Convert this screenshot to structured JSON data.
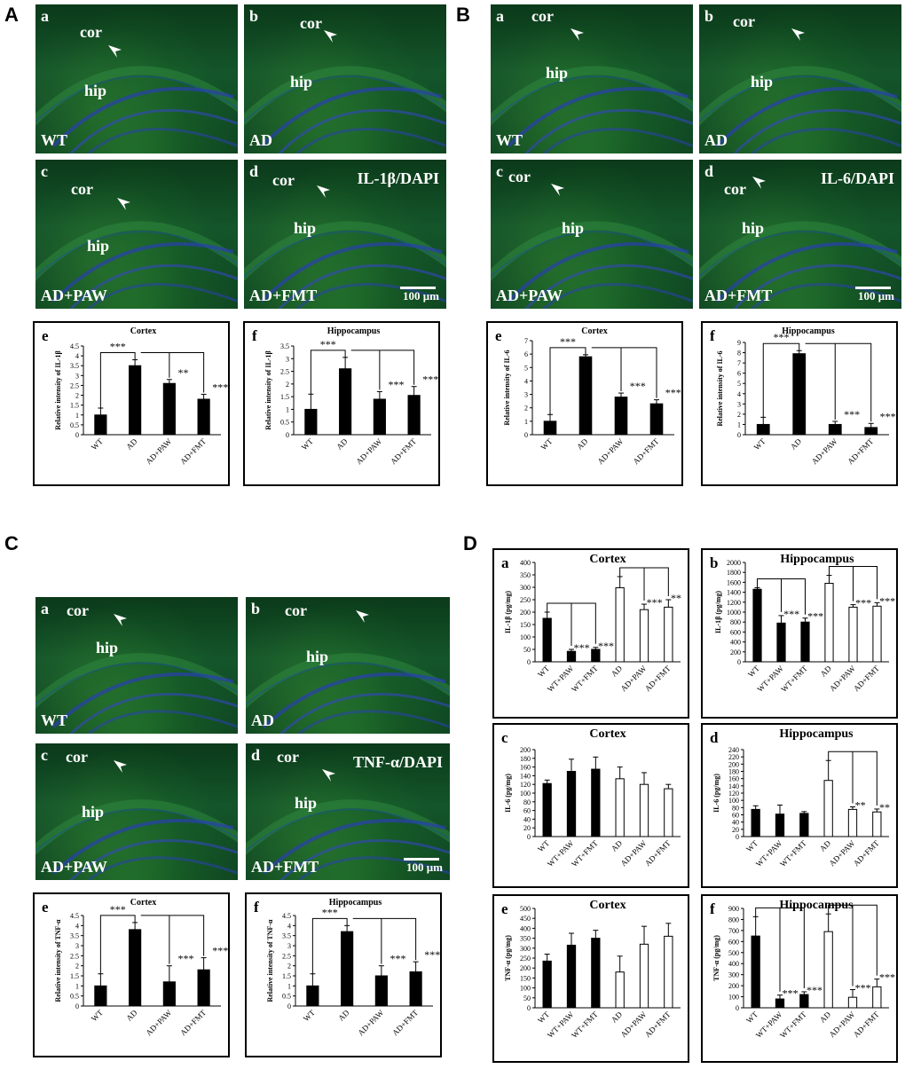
{
  "panels": {
    "A": {
      "letter": "A",
      "stain": "IL-1β/DAPI"
    },
    "B": {
      "letter": "B",
      "stain": "IL-6/DAPI"
    },
    "C": {
      "letter": "C",
      "stain": "TNF-α/DAPI"
    },
    "D": {
      "letter": "D"
    }
  },
  "micro_labels": {
    "cor": "cor",
    "hip": "hip",
    "scale": "100 μm"
  },
  "groups": {
    "wt": "WT",
    "ad": "AD",
    "ad_paw": "AD+PAW",
    "ad_fmt": "AD+FMT"
  },
  "sublabels": {
    "a": "a",
    "b": "b",
    "c": "c",
    "d": "d",
    "e": "e",
    "f": "f"
  },
  "colors": {
    "black_bar": "#000000",
    "white_bar": "#ffffff",
    "tissue_green": "#1f6b34",
    "dapi_blue": "#2a3fb0"
  },
  "chart_data": [
    {
      "id": "A-e",
      "panel": "A",
      "sub": "e",
      "type": "bar",
      "title": "Cortex",
      "ylabel": "Relative intensity of IL-1β",
      "categories": [
        "WT",
        "AD",
        "AD+PAW",
        "AD+FMT"
      ],
      "values": [
        1.0,
        3.5,
        2.6,
        1.8
      ],
      "errors": [
        0.35,
        0.3,
        0.2,
        0.25
      ],
      "sig": [
        "",
        "",
        "**",
        "***"
      ],
      "ylim": [
        0,
        4.5
      ],
      "ticks": [
        0,
        0.5,
        1,
        1.5,
        2,
        2.5,
        3,
        3.5,
        4,
        4.5
      ],
      "top_sig": "***"
    },
    {
      "id": "A-f",
      "panel": "A",
      "sub": "f",
      "type": "bar",
      "title": "Hippocampus",
      "ylabel": "Relative intensity of IL-1β",
      "categories": [
        "WT",
        "AD",
        "AD+PAW",
        "AD+FMT"
      ],
      "values": [
        1.0,
        2.6,
        1.4,
        1.55
      ],
      "errors": [
        0.6,
        0.45,
        0.3,
        0.35
      ],
      "sig": [
        "",
        "",
        "***",
        "***"
      ],
      "ylim": [
        0,
        3.5
      ],
      "ticks": [
        0,
        0.5,
        1,
        1.5,
        2,
        2.5,
        3,
        3.5
      ],
      "top_sig": "***"
    },
    {
      "id": "B-e",
      "panel": "B",
      "sub": "e",
      "type": "bar",
      "title": "Cortex",
      "ylabel": "Relative intensity of IL-6",
      "categories": [
        "WT",
        "AD",
        "AD+PAW",
        "AD+FMT"
      ],
      "values": [
        1.0,
        5.8,
        2.8,
        2.3
      ],
      "errors": [
        0.5,
        0.15,
        0.3,
        0.3
      ],
      "sig": [
        "",
        "",
        "***",
        "***"
      ],
      "ylim": [
        0,
        7
      ],
      "ticks": [
        0,
        1,
        2,
        3,
        4,
        5,
        6,
        7
      ],
      "top_sig": "***"
    },
    {
      "id": "B-f",
      "panel": "B",
      "sub": "f",
      "type": "bar",
      "title": "Hippocampus",
      "ylabel": "Relative intensity of IL-6",
      "categories": [
        "WT",
        "AD",
        "AD+PAW",
        "AD+FMT"
      ],
      "values": [
        1.0,
        7.9,
        1.0,
        0.7
      ],
      "errors": [
        0.7,
        0.3,
        0.3,
        0.4
      ],
      "sig": [
        "",
        "",
        "***",
        "***"
      ],
      "ylim": [
        0,
        9
      ],
      "ticks": [
        0,
        1,
        2,
        3,
        4,
        5,
        6,
        7,
        8,
        9
      ],
      "top_sig": "***"
    },
    {
      "id": "C-e",
      "panel": "C",
      "sub": "e",
      "type": "bar",
      "title": "Cortex",
      "ylabel": "Relative intensity of TNF-α",
      "categories": [
        "WT",
        "AD",
        "AD+PAW",
        "AD+FMT"
      ],
      "values": [
        1.0,
        3.8,
        1.2,
        1.8
      ],
      "errors": [
        0.6,
        0.35,
        0.8,
        0.6
      ],
      "sig": [
        "",
        "",
        "***",
        "***"
      ],
      "ylim": [
        0,
        4.5
      ],
      "ticks": [
        0,
        0.5,
        1,
        1.5,
        2,
        2.5,
        3,
        3.5,
        4,
        4.5
      ],
      "top_sig": "***"
    },
    {
      "id": "C-f",
      "panel": "C",
      "sub": "f",
      "type": "bar",
      "title": "Hippocampus",
      "ylabel": "Relative intensity of TNF-α",
      "categories": [
        "WT",
        "AD",
        "AD+PAW",
        "AD+FMT"
      ],
      "values": [
        1.0,
        3.7,
        1.5,
        1.7
      ],
      "errors": [
        0.6,
        0.3,
        0.5,
        0.5
      ],
      "sig": [
        "",
        "",
        "***",
        "***"
      ],
      "ylim": [
        0,
        4.5
      ],
      "ticks": [
        0,
        0.5,
        1,
        1.5,
        2,
        2.5,
        3,
        3.5,
        4,
        4.5
      ],
      "top_sig": "***"
    },
    {
      "id": "D-a",
      "panel": "D",
      "sub": "a",
      "type": "bar",
      "title": "Cortex",
      "ylabel": "IL-1β (pg/mg)",
      "categories": [
        "WT",
        "WT+PAW",
        "WT+FMT",
        "AD",
        "AD+PAW",
        "AD+FMT"
      ],
      "values": [
        175,
        42,
        50,
        298,
        210,
        220
      ],
      "errors": [
        25,
        8,
        8,
        45,
        22,
        30
      ],
      "fill": [
        "black",
        "black",
        "black",
        "white",
        "white",
        "white"
      ],
      "sig": [
        "",
        "***",
        "***",
        "",
        "***",
        "**"
      ],
      "ylim": [
        0,
        400
      ],
      "ticks": [
        0,
        50,
        100,
        150,
        200,
        250,
        300,
        350,
        400
      ]
    },
    {
      "id": "D-b",
      "panel": "D",
      "sub": "b",
      "type": "bar",
      "title": "Hippocampus",
      "ylabel": "IL-1β (pg/mg)",
      "categories": [
        "WT",
        "WT+PAW",
        "WT+FMT",
        "AD",
        "AD+PAW",
        "AD+FMT"
      ],
      "values": [
        1460,
        780,
        800,
        1580,
        1100,
        1120
      ],
      "errors": [
        30,
        150,
        80,
        160,
        50,
        70
      ],
      "fill": [
        "black",
        "black",
        "black",
        "white",
        "white",
        "white"
      ],
      "sig": [
        "",
        "***",
        "***",
        "",
        "***",
        "***"
      ],
      "ylim": [
        0,
        2000
      ],
      "ticks": [
        0,
        200,
        400,
        600,
        800,
        1000,
        1200,
        1400,
        1600,
        1800,
        2000
      ]
    },
    {
      "id": "D-c",
      "panel": "D",
      "sub": "c",
      "type": "bar",
      "title": "Cortex",
      "ylabel": "IL-6 (pg/mg)",
      "categories": [
        "WT",
        "WT+PAW",
        "WT+FMT",
        "AD",
        "AD+PAW",
        "AD+FMT"
      ],
      "values": [
        122,
        150,
        155,
        133,
        120,
        110
      ],
      "errors": [
        8,
        28,
        28,
        27,
        27,
        10
      ],
      "fill": [
        "black",
        "black",
        "black",
        "white",
        "white",
        "white"
      ],
      "sig": [
        "",
        "",
        "",
        "",
        "",
        ""
      ],
      "ylim": [
        0,
        200
      ],
      "ticks": [
        0,
        20,
        40,
        60,
        80,
        100,
        120,
        140,
        160,
        180,
        200
      ]
    },
    {
      "id": "D-d",
      "panel": "D",
      "sub": "d",
      "type": "bar",
      "title": "Hippocampus",
      "ylabel": "IL-6 (pg/mg)",
      "categories": [
        "WT",
        "WT+PAW",
        "WT+FMT",
        "AD",
        "AD+PAW",
        "AD+FMT"
      ],
      "values": [
        75,
        62,
        64,
        155,
        75,
        68
      ],
      "errors": [
        10,
        25,
        5,
        55,
        7,
        8
      ],
      "fill": [
        "black",
        "black",
        "black",
        "white",
        "white",
        "white"
      ],
      "sig": [
        "",
        "",
        "",
        "",
        "**",
        "**"
      ],
      "ylim": [
        0,
        240
      ],
      "ticks": [
        0,
        20,
        40,
        60,
        80,
        100,
        120,
        140,
        160,
        180,
        200,
        220,
        240
      ]
    },
    {
      "id": "D-e",
      "panel": "D",
      "sub": "e",
      "type": "bar",
      "title": "Cortex",
      "ylabel": "TNF-α (pg/mg)",
      "categories": [
        "WT",
        "WT+PAW",
        "WT+FMT",
        "AD",
        "AD+PAW",
        "AD+FMT"
      ],
      "values": [
        235,
        315,
        350,
        180,
        320,
        360
      ],
      "errors": [
        35,
        60,
        40,
        80,
        90,
        65
      ],
      "fill": [
        "black",
        "black",
        "black",
        "white",
        "white",
        "white"
      ],
      "sig": [
        "",
        "",
        "",
        "",
        "",
        ""
      ],
      "ylim": [
        0,
        500
      ],
      "ticks": [
        0,
        50,
        100,
        150,
        200,
        250,
        300,
        350,
        400,
        450,
        500
      ]
    },
    {
      "id": "D-f",
      "panel": "D",
      "sub": "f",
      "type": "bar",
      "title": "Hippocampus",
      "ylabel": "TNF-α (pg/mg)",
      "categories": [
        "WT",
        "WT+PAW",
        "WT+FMT",
        "AD",
        "AD+PAW",
        "AD+FMT"
      ],
      "values": [
        650,
        80,
        120,
        690,
        95,
        190
      ],
      "errors": [
        175,
        35,
        25,
        160,
        70,
        70
      ],
      "fill": [
        "black",
        "black",
        "black",
        "white",
        "white",
        "white"
      ],
      "sig": [
        "",
        "***",
        "***",
        "",
        "***",
        "***"
      ],
      "ylim": [
        0,
        900
      ],
      "ticks": [
        0,
        100,
        200,
        300,
        400,
        500,
        600,
        700,
        800,
        900
      ]
    }
  ]
}
